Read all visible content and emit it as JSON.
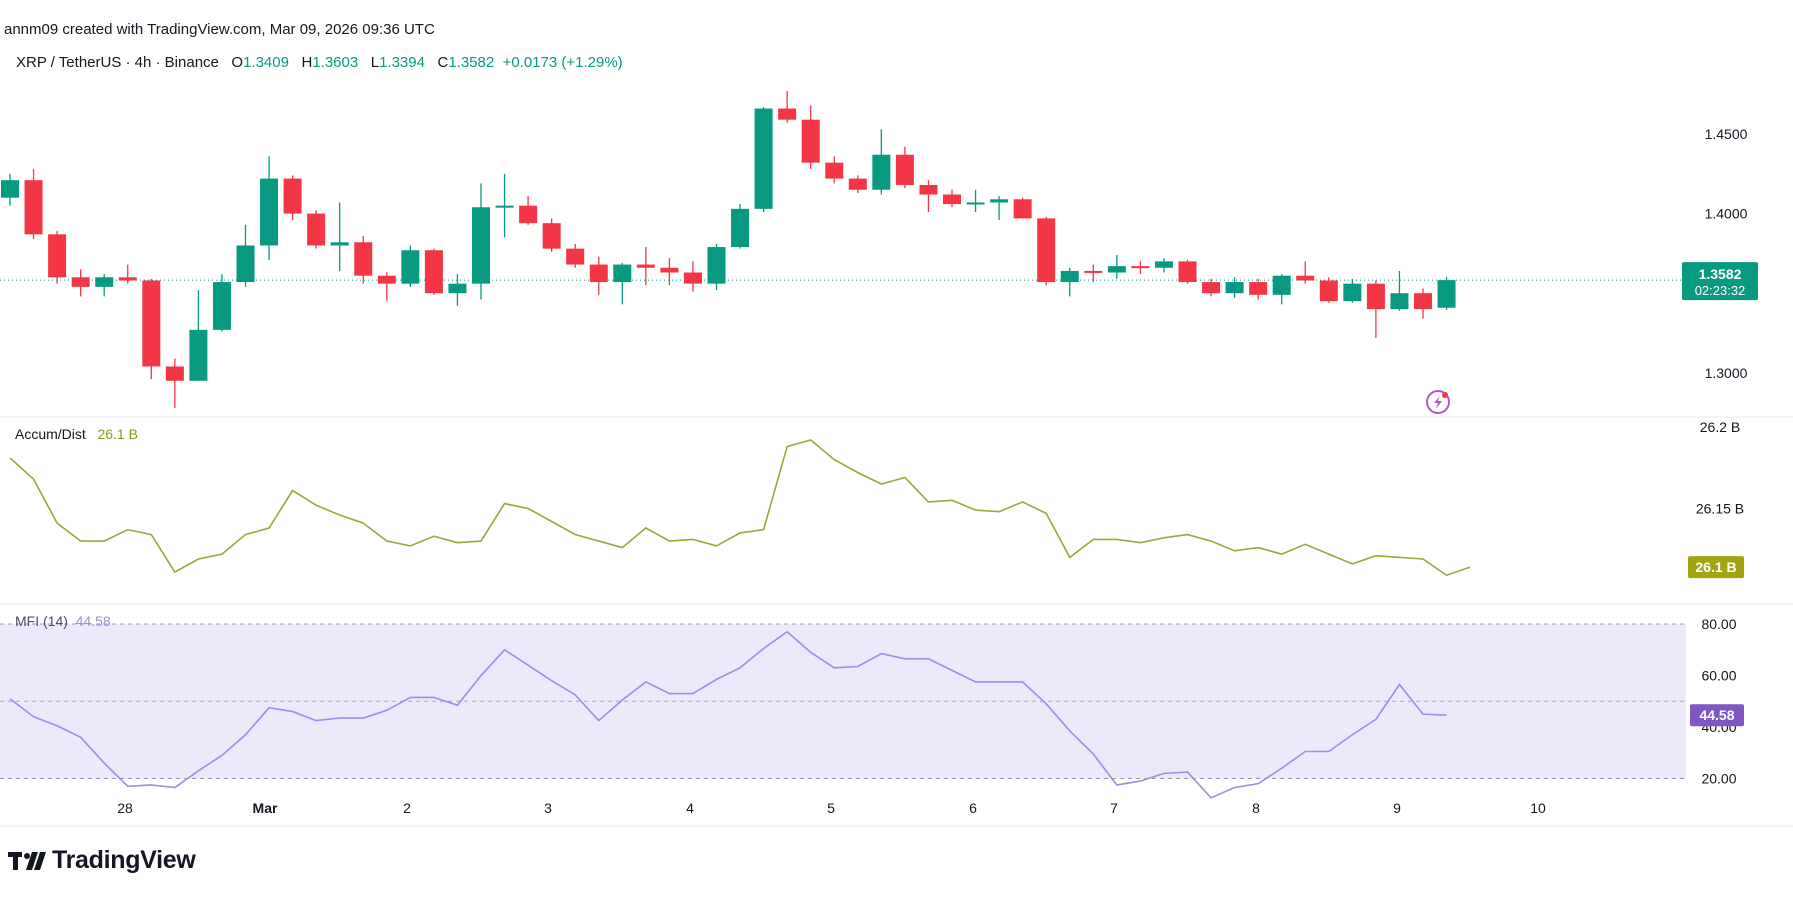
{
  "header": {
    "attribution": "annm09 created with TradingView.com, Mar 09, 2026 09:36 UTC",
    "symbol": "XRP / TetherUS · 4h · Binance",
    "o_label": "O",
    "o_value": "1.3409",
    "h_label": "H",
    "h_value": "1.3603",
    "l_label": "L",
    "l_value": "1.3394",
    "c_label": "C",
    "c_value": "1.3582",
    "change": "+0.0173 (+1.29%)"
  },
  "brand": {
    "name": "TradingView"
  },
  "colors": {
    "up": "#089981",
    "down": "#f23645",
    "ad_line": "#9aa83a",
    "mfi_line": "#9b8fe0",
    "mfi_band": "#ece9fb",
    "ad_badge": "#a2a414",
    "mfi_badge": "#7e57c2",
    "price_badge": "#089981"
  },
  "chart_data": [
    {
      "type": "candlestick",
      "title": "XRP / TetherUS · 4h · Binance",
      "y_ticks": [
        "1.4500",
        "1.4000",
        "1.3000"
      ],
      "y_tick_values": [
        1.45,
        1.4,
        1.3
      ],
      "ylim": [
        1.2735,
        1.4965
      ],
      "last_price_label": "1.3582",
      "countdown_label": "02:23:32",
      "last_price": 1.3582,
      "x_tick_labels": [
        "28",
        "Mar",
        "2",
        "3",
        "4",
        "5",
        "6",
        "7",
        "8",
        "9",
        "10"
      ],
      "candles": [
        {
          "o": 1.41,
          "h": 1.425,
          "l": 1.405,
          "c": 1.421
        },
        {
          "o": 1.421,
          "h": 1.428,
          "l": 1.384,
          "c": 1.387
        },
        {
          "o": 1.387,
          "h": 1.389,
          "l": 1.356,
          "c": 1.36
        },
        {
          "o": 1.36,
          "h": 1.365,
          "l": 1.348,
          "c": 1.354
        },
        {
          "o": 1.354,
          "h": 1.362,
          "l": 1.348,
          "c": 1.36
        },
        {
          "o": 1.36,
          "h": 1.368,
          "l": 1.356,
          "c": 1.358
        },
        {
          "o": 1.358,
          "h": 1.359,
          "l": 1.296,
          "c": 1.304
        },
        {
          "o": 1.304,
          "h": 1.309,
          "l": 1.278,
          "c": 1.295
        },
        {
          "o": 1.295,
          "h": 1.352,
          "l": 1.295,
          "c": 1.327
        },
        {
          "o": 1.327,
          "h": 1.362,
          "l": 1.326,
          "c": 1.357
        },
        {
          "o": 1.357,
          "h": 1.393,
          "l": 1.354,
          "c": 1.38
        },
        {
          "o": 1.38,
          "h": 1.436,
          "l": 1.371,
          "c": 1.422
        },
        {
          "o": 1.422,
          "h": 1.424,
          "l": 1.396,
          "c": 1.4
        },
        {
          "o": 1.4,
          "h": 1.402,
          "l": 1.378,
          "c": 1.38
        },
        {
          "o": 1.38,
          "h": 1.407,
          "l": 1.364,
          "c": 1.382
        },
        {
          "o": 1.382,
          "h": 1.386,
          "l": 1.356,
          "c": 1.361
        },
        {
          "o": 1.361,
          "h": 1.363,
          "l": 1.345,
          "c": 1.356
        },
        {
          "o": 1.356,
          "h": 1.38,
          "l": 1.354,
          "c": 1.377
        },
        {
          "o": 1.377,
          "h": 1.378,
          "l": 1.349,
          "c": 1.35
        },
        {
          "o": 1.35,
          "h": 1.362,
          "l": 1.342,
          "c": 1.356
        },
        {
          "o": 1.356,
          "h": 1.419,
          "l": 1.346,
          "c": 1.404
        },
        {
          "o": 1.404,
          "h": 1.425,
          "l": 1.385,
          "c": 1.405
        },
        {
          "o": 1.405,
          "h": 1.411,
          "l": 1.393,
          "c": 1.394
        },
        {
          "o": 1.394,
          "h": 1.397,
          "l": 1.376,
          "c": 1.378
        },
        {
          "o": 1.378,
          "h": 1.381,
          "l": 1.366,
          "c": 1.368
        },
        {
          "o": 1.368,
          "h": 1.373,
          "l": 1.349,
          "c": 1.357
        },
        {
          "o": 1.357,
          "h": 1.369,
          "l": 1.343,
          "c": 1.368
        },
        {
          "o": 1.368,
          "h": 1.379,
          "l": 1.355,
          "c": 1.366
        },
        {
          "o": 1.366,
          "h": 1.372,
          "l": 1.355,
          "c": 1.363
        },
        {
          "o": 1.363,
          "h": 1.37,
          "l": 1.351,
          "c": 1.356
        },
        {
          "o": 1.356,
          "h": 1.381,
          "l": 1.352,
          "c": 1.379
        },
        {
          "o": 1.379,
          "h": 1.406,
          "l": 1.378,
          "c": 1.403
        },
        {
          "o": 1.403,
          "h": 1.467,
          "l": 1.401,
          "c": 1.466
        },
        {
          "o": 1.466,
          "h": 1.477,
          "l": 1.457,
          "c": 1.459
        },
        {
          "o": 1.459,
          "h": 1.468,
          "l": 1.428,
          "c": 1.432
        },
        {
          "o": 1.432,
          "h": 1.436,
          "l": 1.419,
          "c": 1.422
        },
        {
          "o": 1.422,
          "h": 1.424,
          "l": 1.413,
          "c": 1.415
        },
        {
          "o": 1.415,
          "h": 1.453,
          "l": 1.412,
          "c": 1.437
        },
        {
          "o": 1.437,
          "h": 1.442,
          "l": 1.416,
          "c": 1.418
        },
        {
          "o": 1.418,
          "h": 1.421,
          "l": 1.401,
          "c": 1.412
        },
        {
          "o": 1.412,
          "h": 1.415,
          "l": 1.404,
          "c": 1.406
        },
        {
          "o": 1.406,
          "h": 1.415,
          "l": 1.401,
          "c": 1.407
        },
        {
          "o": 1.407,
          "h": 1.411,
          "l": 1.396,
          "c": 1.409
        },
        {
          "o": 1.409,
          "h": 1.41,
          "l": 1.397,
          "c": 1.397
        },
        {
          "o": 1.397,
          "h": 1.398,
          "l": 1.355,
          "c": 1.357
        },
        {
          "o": 1.357,
          "h": 1.366,
          "l": 1.348,
          "c": 1.364
        },
        {
          "o": 1.364,
          "h": 1.368,
          "l": 1.357,
          "c": 1.363
        },
        {
          "o": 1.363,
          "h": 1.374,
          "l": 1.359,
          "c": 1.367
        },
        {
          "o": 1.367,
          "h": 1.37,
          "l": 1.362,
          "c": 1.366
        },
        {
          "o": 1.366,
          "h": 1.372,
          "l": 1.363,
          "c": 1.37
        },
        {
          "o": 1.37,
          "h": 1.371,
          "l": 1.356,
          "c": 1.357
        },
        {
          "o": 1.357,
          "h": 1.359,
          "l": 1.348,
          "c": 1.35
        },
        {
          "o": 1.35,
          "h": 1.36,
          "l": 1.347,
          "c": 1.357
        },
        {
          "o": 1.357,
          "h": 1.359,
          "l": 1.346,
          "c": 1.349
        },
        {
          "o": 1.349,
          "h": 1.362,
          "l": 1.343,
          "c": 1.361
        },
        {
          "o": 1.361,
          "h": 1.37,
          "l": 1.356,
          "c": 1.358
        },
        {
          "o": 1.358,
          "h": 1.36,
          "l": 1.344,
          "c": 1.345
        },
        {
          "o": 1.345,
          "h": 1.359,
          "l": 1.344,
          "c": 1.356
        },
        {
          "o": 1.356,
          "h": 1.358,
          "l": 1.322,
          "c": 1.34
        },
        {
          "o": 1.34,
          "h": 1.364,
          "l": 1.339,
          "c": 1.35
        },
        {
          "o": 1.35,
          "h": 1.353,
          "l": 1.334,
          "c": 1.34
        },
        {
          "o": 1.3409,
          "h": 1.3603,
          "l": 1.3394,
          "c": 1.3582
        }
      ]
    },
    {
      "type": "line",
      "title": "Accum/Dist",
      "value_label": "26.1 B",
      "badge_label": "26.1 B",
      "y_ticks": [
        "26.2 B",
        "26.15 B"
      ],
      "y_tick_values": [
        26.2,
        26.15
      ],
      "ylim": [
        26.092,
        26.2055
      ],
      "values": [
        26.181,
        26.168,
        26.141,
        26.13,
        26.13,
        26.137,
        26.134,
        26.111,
        26.119,
        26.122,
        26.134,
        26.138,
        26.161,
        26.152,
        26.146,
        26.141,
        26.13,
        26.127,
        26.133,
        26.129,
        26.13,
        26.153,
        26.15,
        26.142,
        26.134,
        26.13,
        26.126,
        26.138,
        26.13,
        26.131,
        26.127,
        26.135,
        26.137,
        26.188,
        26.192,
        26.18,
        26.172,
        26.165,
        26.169,
        26.154,
        26.155,
        26.149,
        26.148,
        26.154,
        26.147,
        26.12,
        26.131,
        26.131,
        26.129,
        26.132,
        26.134,
        26.13,
        26.124,
        26.126,
        26.122,
        26.128,
        26.122,
        26.116,
        26.121,
        26.12,
        26.119,
        26.109,
        26.114
      ]
    },
    {
      "type": "line",
      "title": "MFI (14)",
      "value_label": "44.58",
      "badge_label": "44.58",
      "y_ticks": [
        "80.00",
        "60.00",
        "40.00",
        "20.00"
      ],
      "y_tick_values": [
        80,
        60,
        40,
        20
      ],
      "ylim": [
        7.0,
        87.0
      ],
      "band": [
        20,
        80
      ],
      "middle_line": 50,
      "values": [
        51.0,
        44.0,
        40.5,
        36.0,
        26.0,
        17.0,
        17.5,
        16.5,
        23.0,
        29.0,
        37.0,
        47.5,
        46.0,
        42.5,
        43.5,
        43.5,
        46.5,
        51.5,
        51.5,
        48.5,
        60.0,
        70.0,
        64.0,
        58.0,
        52.5,
        42.5,
        50.5,
        57.5,
        53.0,
        53.0,
        58.5,
        63.0,
        70.5,
        77.0,
        69.0,
        63.0,
        63.5,
        68.5,
        66.5,
        66.5,
        62.0,
        57.5,
        57.5,
        57.5,
        49.0,
        38.5,
        29.5,
        17.5,
        19.0,
        22.0,
        22.5,
        12.5,
        16.5,
        18.0,
        24.0,
        30.5,
        30.5,
        37.0,
        43.0,
        56.5,
        45.0,
        44.58
      ]
    }
  ]
}
